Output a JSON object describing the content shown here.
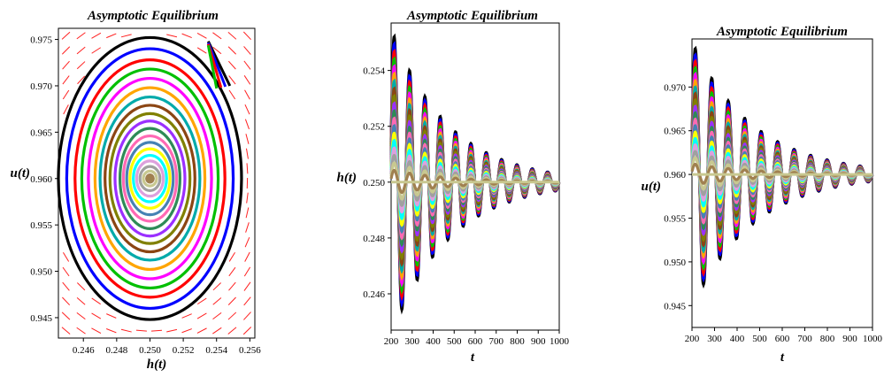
{
  "figure": {
    "panels": [
      {
        "title": "Asymptotic Equilibrium",
        "xlabel": "h(t)",
        "ylabel": "u(t)"
      },
      {
        "title": "Asymptotic Equilibrium",
        "xlabel": "t",
        "ylabel": "h(t)"
      },
      {
        "title": "Asymptotic Equilibrium",
        "xlabel": "t",
        "ylabel": "u(t)"
      }
    ]
  },
  "colors": [
    "#000000",
    "#0000ff",
    "#ff0000",
    "#00c000",
    "#ff00ff",
    "#ffa500",
    "#00aaaa",
    "#8b4513",
    "#808000",
    "#9b30ff",
    "#2e8b57",
    "#ff69b4",
    "#4682b4",
    "#ffff00",
    "#00ffff",
    "#dda0dd",
    "#a0a0a0",
    "#c8c890",
    "#a08050"
  ],
  "chart_data": [
    {
      "type": "scatter",
      "title": "Asymptotic Equilibrium",
      "xlabel": "h(t)",
      "ylabel": "u(t)",
      "xlim": [
        0.2445,
        0.2563
      ],
      "ylim": [
        0.9428,
        0.9762
      ],
      "xticks": [
        0.246,
        0.248,
        0.25,
        0.252,
        0.254,
        0.256
      ],
      "yticks": [
        0.945,
        0.95,
        0.955,
        0.96,
        0.965,
        0.97,
        0.975
      ],
      "equilibrium": [
        0.25,
        0.96
      ],
      "orbit_amplitudes": [
        [
          0.0055,
          0.0152
        ],
        [
          0.005,
          0.014
        ],
        [
          0.0045,
          0.0128
        ],
        [
          0.0041,
          0.0118
        ],
        [
          0.0037,
          0.0108
        ],
        [
          0.0033,
          0.0098
        ],
        [
          0.003,
          0.0088
        ],
        [
          0.0027,
          0.0079
        ],
        [
          0.0024,
          0.007
        ],
        [
          0.0021,
          0.0062
        ],
        [
          0.0018,
          0.0054
        ],
        [
          0.0016,
          0.0046
        ],
        [
          0.0014,
          0.0039
        ],
        [
          0.0012,
          0.0032
        ],
        [
          0.001,
          0.0025
        ],
        [
          0.0008,
          0.0019
        ],
        [
          0.0006,
          0.0013
        ],
        [
          0.0004,
          0.0008
        ],
        [
          0.0002,
          0.0004
        ]
      ],
      "direction_field": true
    },
    {
      "type": "line",
      "title": "Asymptotic Equilibrium",
      "xlabel": "t",
      "ylabel": "h(t)",
      "xlim": [
        200,
        1000
      ],
      "ylim": [
        0.2447,
        0.2557
      ],
      "xticks": [
        200,
        300,
        400,
        500,
        600,
        700,
        800,
        900,
        1000
      ],
      "yticks": [
        0.246,
        0.248,
        0.25,
        0.252,
        0.254
      ],
      "equilibrium": 0.25,
      "period": 73,
      "peak_t": [
        215,
        285,
        358,
        430,
        502,
        575,
        648,
        720,
        793,
        865,
        938
      ],
      "max_amplitude_start": 0.0055,
      "max_amplitude_end": 0.0003
    },
    {
      "type": "line",
      "title": "Asymptotic Equilibrium",
      "xlabel": "t",
      "ylabel": "u(t)",
      "xlim": [
        200,
        1000
      ],
      "ylim": [
        0.9425,
        0.9755
      ],
      "xticks": [
        200,
        300,
        400,
        500,
        600,
        700,
        800,
        900,
        1000
      ],
      "yticks": [
        0.945,
        0.95,
        0.955,
        0.96,
        0.965,
        0.97
      ],
      "equilibrium": 0.96,
      "period": 73,
      "peak_t": [
        215,
        253,
        326,
        398,
        470,
        543,
        616,
        688,
        761,
        833,
        906,
        979
      ],
      "max_amplitude_start": 0.0152,
      "max_amplitude_end": 0.0008
    }
  ]
}
